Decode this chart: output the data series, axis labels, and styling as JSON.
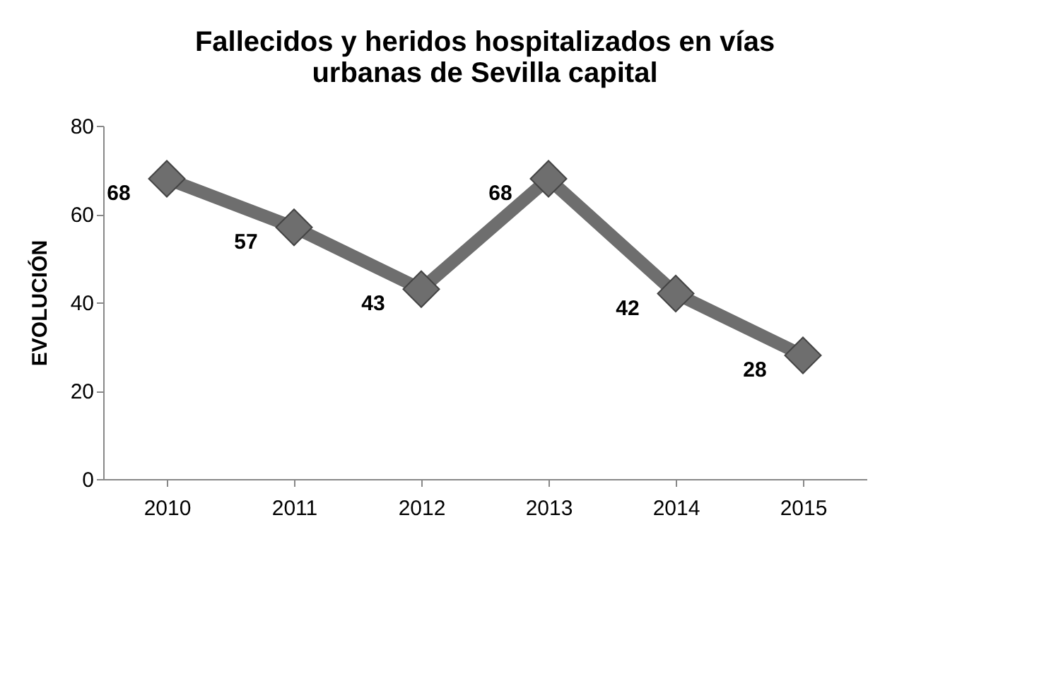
{
  "chart_data": {
    "type": "line",
    "title": "Fallecidos y heridos hospitalizados en vías urbanas de Sevilla capital",
    "ylabel": "EVOLUCIÓN",
    "categories": [
      "2010",
      "2011",
      "2012",
      "2013",
      "2014",
      "2015"
    ],
    "series": [
      {
        "color": "#6e6e6e",
        "values": [
          68,
          57,
          43,
          68,
          42,
          28
        ]
      }
    ],
    "ylim": [
      0,
      80
    ],
    "yticks": [
      0,
      20,
      40,
      60,
      80
    ],
    "grid": false,
    "legend": false,
    "marker": "diamond",
    "line_style": "solid",
    "data_labels": true
  }
}
